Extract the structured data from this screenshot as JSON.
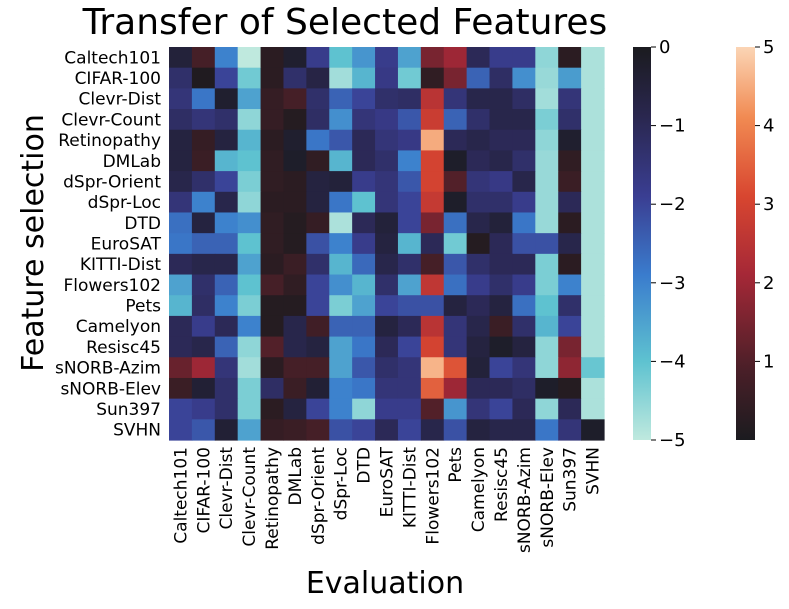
{
  "chart_data": {
    "type": "heatmap",
    "title": "Transfer of Selected Features",
    "xlabel": "Evaluation",
    "ylabel": "Feature selection",
    "grid": false,
    "legend": "colorbars-right",
    "x": [
      "Caltech101",
      "CIFAR-100",
      "Clevr-Dist",
      "Clevr-Count",
      "Retinopathy",
      "DMLab",
      "dSpr-Orient",
      "dSpr-Loc",
      "DTD",
      "EuroSAT",
      "KITTI-Dist",
      "Flowers102",
      "Pets",
      "Camelyon",
      "Resisc45",
      "sNORB-Azim",
      "sNORB-Elev",
      "Sun397",
      "SVHN"
    ],
    "y": [
      "Caltech101",
      "CIFAR-100",
      "Clevr-Dist",
      "Clevr-Count",
      "Retinopathy",
      "DMLab",
      "dSpr-Orient",
      "dSpr-Loc",
      "DTD",
      "EuroSAT",
      "KITTI-Dist",
      "Flowers102",
      "Pets",
      "Camelyon",
      "Resisc45",
      "sNORB-Azim",
      "sNORB-Elev",
      "Sun397",
      "SVHN"
    ],
    "values": [
      [
        -0.5,
        0.8,
        -3.0,
        -5.0,
        0.3,
        -0.3,
        -1.8,
        -4.0,
        -3.3,
        -1.8,
        -3.5,
        1.5,
        2.0,
        -1.0,
        -1.8,
        -1.8,
        -4.5,
        0.3,
        -4.8
      ],
      [
        -1.3,
        0.1,
        -2.0,
        -4.2,
        0.3,
        -1.3,
        -0.7,
        -4.7,
        -3.8,
        -1.7,
        -4.2,
        0.4,
        1.5,
        -2.5,
        -1.2,
        -3.2,
        -4.6,
        -3.4,
        -4.8
      ],
      [
        -1.5,
        -2.8,
        -0.3,
        -3.5,
        0.5,
        0.8,
        -1.3,
        -2.5,
        -2.0,
        -1.3,
        -1.2,
        2.5,
        -1.5,
        -0.8,
        -0.8,
        -1.2,
        -4.7,
        -1.5,
        -4.8
      ],
      [
        -1.2,
        -1.5,
        -1.3,
        -4.5,
        0.5,
        0.2,
        -1.2,
        -3.2,
        -1.5,
        -1.7,
        -2.3,
        2.8,
        -2.5,
        -1.3,
        -0.8,
        -0.8,
        -4.3,
        -1.3,
        -4.8
      ],
      [
        -0.6,
        0.5,
        -0.6,
        -3.8,
        0.3,
        -0.3,
        -2.8,
        -2.3,
        -1.0,
        -1.5,
        -1.7,
        4.5,
        -1.0,
        -0.8,
        -1.0,
        -1.0,
        -4.5,
        -0.3,
        -4.8
      ],
      [
        -0.6,
        0.6,
        -3.8,
        -4.0,
        0.4,
        -0.2,
        0.4,
        -3.8,
        -1.0,
        -1.3,
        -3.0,
        3.0,
        -0.2,
        -1.0,
        -0.8,
        -1.3,
        -4.6,
        0.4,
        -4.8
      ],
      [
        -0.8,
        -1.3,
        -2.0,
        -4.3,
        0.4,
        0.3,
        -0.6,
        -0.5,
        -1.8,
        -1.5,
        -2.3,
        3.0,
        1.0,
        -1.5,
        -1.7,
        -0.8,
        -4.6,
        0.6,
        -4.8
      ],
      [
        -1.5,
        -3.0,
        -0.8,
        -4.5,
        0.3,
        0.3,
        -0.6,
        -2.8,
        -4.0,
        -1.5,
        -2.0,
        2.7,
        -0.2,
        -1.3,
        -1.3,
        -1.8,
        -4.6,
        -1.0,
        -4.8
      ],
      [
        -2.7,
        -0.6,
        -3.0,
        -3.2,
        0.4,
        0.2,
        0.5,
        -4.8,
        -1.0,
        -0.5,
        -2.0,
        1.5,
        -2.7,
        -0.8,
        -0.5,
        -2.8,
        -4.6,
        0.3,
        -4.8
      ],
      [
        -2.8,
        -2.5,
        -2.5,
        -4.0,
        0.4,
        0.2,
        -2.2,
        -3.0,
        -1.8,
        -0.6,
        -3.8,
        -1.0,
        -4.2,
        0.2,
        -1.0,
        -2.2,
        -2.2,
        -0.8,
        -4.8
      ],
      [
        -1.0,
        -0.8,
        -0.8,
        -3.5,
        0.3,
        0.6,
        -1.3,
        -3.8,
        -2.6,
        -0.8,
        -1.3,
        0.8,
        -2.3,
        -1.3,
        -1.0,
        -1.0,
        -4.3,
        0.3,
        -4.8
      ],
      [
        -3.5,
        -1.3,
        -2.5,
        -4.0,
        0.8,
        0.4,
        -2.0,
        -3.2,
        -3.8,
        -1.3,
        -3.5,
        2.6,
        -2.7,
        -1.8,
        -1.3,
        -1.8,
        -4.3,
        -3.0,
        -4.8
      ],
      [
        -3.8,
        -1.2,
        -3.0,
        -4.3,
        0.2,
        0.2,
        -2.0,
        -4.3,
        -3.5,
        -2.0,
        -2.2,
        -2.2,
        -0.6,
        -1.0,
        -0.6,
        -2.7,
        -4.0,
        -1.3,
        -4.8
      ],
      [
        -1.0,
        -1.8,
        -1.0,
        -3.0,
        0.2,
        -0.8,
        0.7,
        -2.5,
        -2.5,
        -0.6,
        -1.0,
        2.5,
        -1.5,
        -0.8,
        0.6,
        -1.3,
        -3.8,
        -2.0,
        -4.8
      ],
      [
        -1.0,
        -0.8,
        -2.5,
        -4.5,
        1.0,
        -0.8,
        -0.6,
        -3.5,
        -2.8,
        -1.0,
        -2.0,
        3.0,
        -1.5,
        -0.6,
        -0.2,
        -0.6,
        -4.5,
        1.5,
        -4.8
      ],
      [
        1.3,
        2.0,
        -1.5,
        -4.7,
        0.3,
        0.8,
        0.8,
        -3.5,
        -2.3,
        -1.3,
        -1.5,
        4.6,
        3.3,
        -0.5,
        -2.0,
        -1.5,
        -4.5,
        1.8,
        -4.1
      ],
      [
        0.6,
        -0.4,
        -1.3,
        -4.3,
        -1.2,
        0.6,
        -0.4,
        -3.0,
        -2.8,
        -1.5,
        -1.5,
        3.5,
        2.0,
        -1.0,
        -1.0,
        -1.2,
        -0.2,
        0.2,
        -4.8
      ],
      [
        -2.0,
        -1.8,
        -1.3,
        -4.3,
        0.3,
        -0.6,
        -2.0,
        -3.0,
        -4.5,
        -1.8,
        -1.8,
        1.0,
        -3.3,
        -1.5,
        -2.0,
        -1.0,
        -4.5,
        -1.0,
        -4.8
      ],
      [
        -2.0,
        -2.3,
        -0.4,
        -3.5,
        0.5,
        0.6,
        0.8,
        -2.2,
        -2.0,
        -1.0,
        -2.0,
        -0.8,
        -2.2,
        -0.6,
        -0.8,
        -0.8,
        -2.8,
        -1.5,
        -0.2
      ]
    ],
    "colorbars": [
      {
        "range": [
          -5,
          0
        ],
        "ticks": [
          "0",
          "−1",
          "−2",
          "−3",
          "−4",
          "−5"
        ],
        "colormap": "icefire-negative"
      },
      {
        "range": [
          0,
          5
        ],
        "ticks": [
          "5",
          "4",
          "3",
          "2",
          "1"
        ],
        "colormap": "icefire-positive"
      }
    ]
  }
}
